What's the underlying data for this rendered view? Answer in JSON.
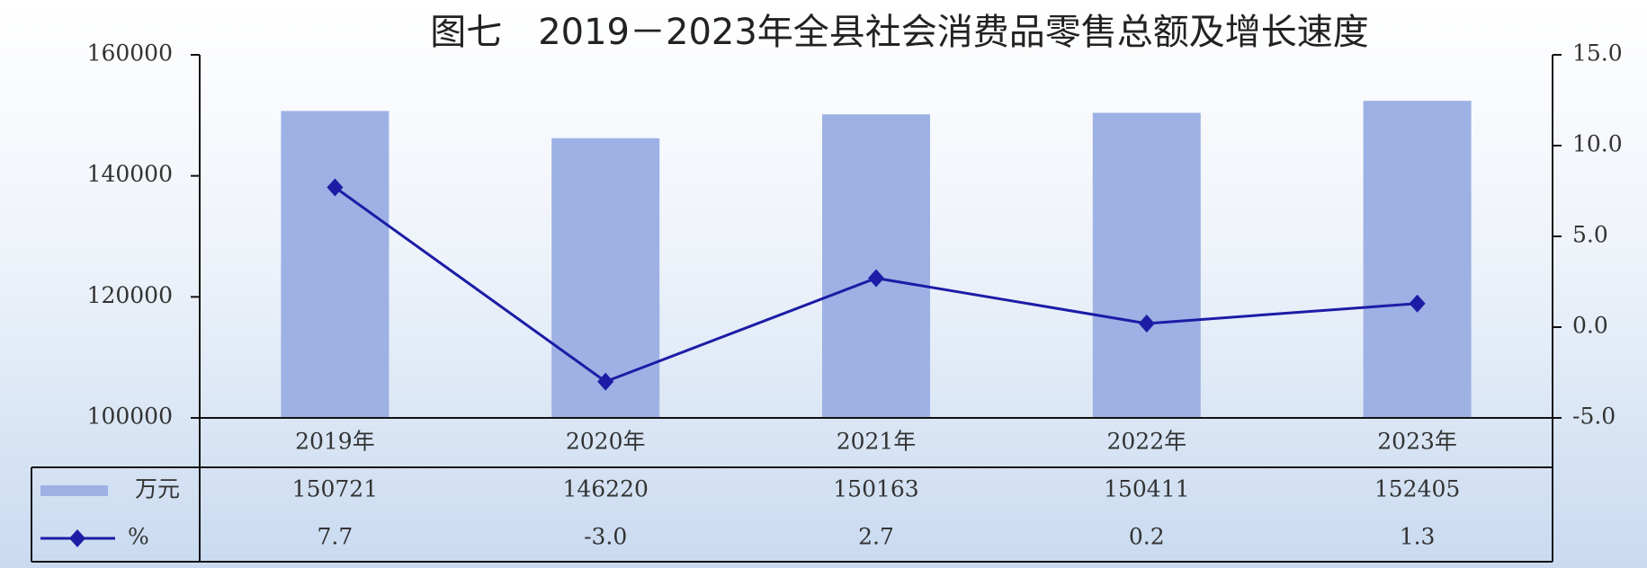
{
  "chart_data": {
    "type": "bar",
    "title": "图七　2019－2023年全县社会消费品零售总额及增长速度",
    "categories": [
      "2019年",
      "2020年",
      "2021年",
      "2022年",
      "2023年"
    ],
    "series": [
      {
        "name": "万元",
        "type": "bar",
        "color": "#9db1e4",
        "values": [
          150721,
          146220,
          150163,
          150411,
          152405
        ]
      },
      {
        "name": "%",
        "type": "line",
        "axis": "y2",
        "color": "#1c1ca6",
        "values": [
          7.7,
          -3.0,
          2.7,
          0.2,
          1.3
        ],
        "value_labels": [
          "7.7",
          "-3.0",
          "2.7",
          "0.2",
          "1.3"
        ]
      }
    ],
    "ylim": [
      100000,
      160000
    ],
    "yticks": [
      100000,
      120000,
      140000,
      160000
    ],
    "y2lim": [
      -5,
      15
    ],
    "y2ticks": [
      {
        "value": -5,
        "label": "-5.0"
      },
      {
        "value": 0,
        "label": "0.0"
      },
      {
        "value": 5,
        "label": "5.0"
      },
      {
        "value": 10,
        "label": "10.0"
      },
      {
        "value": 15,
        "label": "15.0"
      }
    ]
  }
}
